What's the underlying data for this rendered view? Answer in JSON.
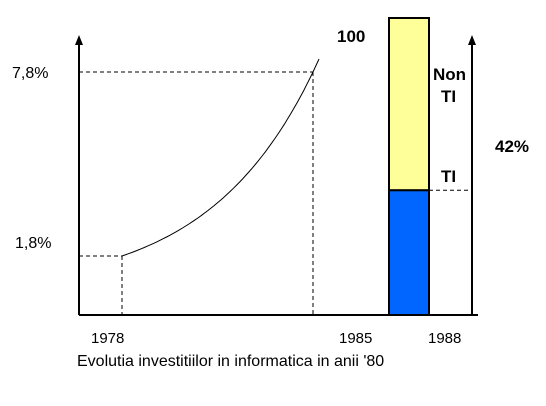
{
  "chart_data": {
    "type": "line",
    "title": "",
    "caption": "Evolutia investitiilor in informatica in anii '80",
    "xlabel": "",
    "ylabel": "",
    "x_tick_labels": [
      "1978",
      "1985",
      "1988"
    ],
    "y_tick_labels": [
      "1,8%",
      "7,8%"
    ],
    "series": [
      {
        "values": [
          {
            "x": 1978,
            "y": 1.8
          },
          {
            "x": 1985,
            "y": 7.8
          }
        ]
      }
    ],
    "stacked_bar": {
      "total_label": "100",
      "segments": [
        {
          "label": "TI",
          "value": 42,
          "value_label": "42%",
          "color": "#0066ff"
        },
        {
          "label_line1": "Non",
          "label_line2": "TI",
          "value": 58,
          "color": "#ffff99"
        }
      ]
    },
    "colors": {
      "axis": "#000000",
      "line": "#000000",
      "ti": "#0066ff",
      "non_ti": "#ffff99"
    }
  }
}
